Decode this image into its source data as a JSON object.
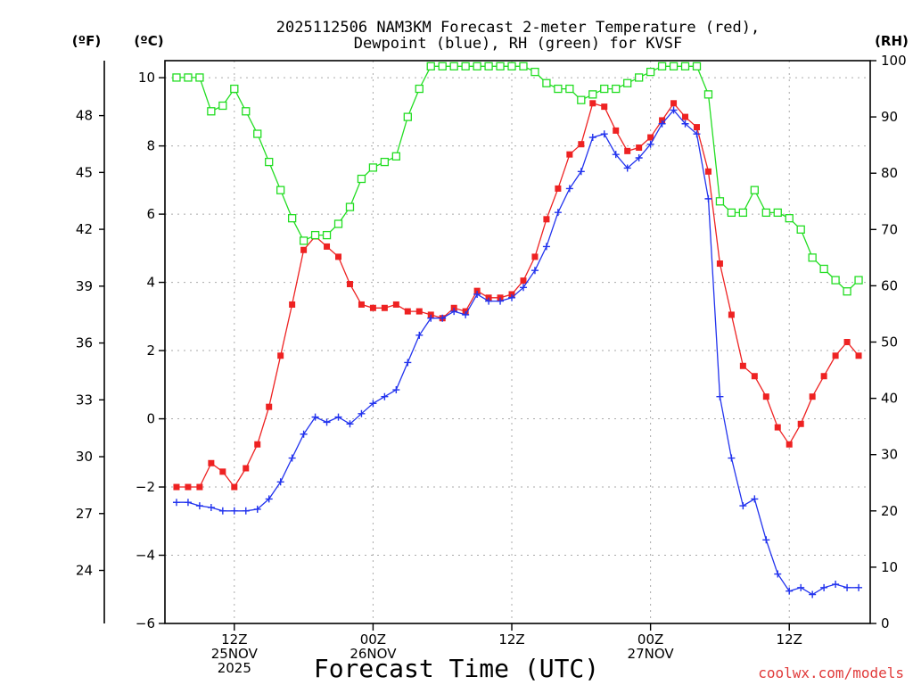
{
  "chart_data": {
    "type": "line",
    "title_lines": [
      "2025112506 NAM3KM Forecast 2-meter Temperature (red),",
      "Dewpoint (blue), RH (green) for KVSF"
    ],
    "xlabel": "Forecast Time (UTC)",
    "credit": "coolwx.com/models",
    "x_range": [
      0,
      61
    ],
    "x_ticks": [
      {
        "x": 6,
        "lines": [
          "12Z",
          "25NOV",
          "2025"
        ]
      },
      {
        "x": 18,
        "lines": [
          "00Z",
          "26NOV"
        ]
      },
      {
        "x": 30,
        "lines": [
          "12Z"
        ]
      },
      {
        "x": 42,
        "lines": [
          "00Z",
          "27NOV"
        ]
      },
      {
        "x": 54,
        "lines": [
          "12Z"
        ]
      }
    ],
    "axes": {
      "celsius": {
        "label": "(ºC)",
        "range": [
          -6,
          10.5
        ],
        "ticks": [
          "-6",
          "-4",
          "-2",
          "0",
          "2",
          "4",
          "6",
          "8",
          "10"
        ]
      },
      "fahrenheit": {
        "label": "(ºF)",
        "ticks": [
          "24",
          "27",
          "30",
          "33",
          "36",
          "39",
          "42",
          "45",
          "48"
        ]
      },
      "rh": {
        "label": "(RH)",
        "range": [
          0,
          100
        ],
        "ticks": [
          "0",
          "10",
          "20",
          "30",
          "40",
          "50",
          "60",
          "70",
          "80",
          "90",
          "100"
        ]
      }
    },
    "series": [
      {
        "name": "Temperature",
        "unit": "C",
        "color": "#ee2222",
        "marker": "filled-square",
        "values": [
          -2,
          -2,
          -2,
          -1.3,
          -1.55,
          -2,
          -1.45,
          -0.75,
          0.35,
          1.85,
          3.35,
          4.95,
          5.35,
          5.05,
          4.75,
          3.95,
          3.35,
          3.25,
          3.25,
          3.35,
          3.15,
          3.15,
          3.05,
          2.95,
          3.25,
          3.15,
          3.75,
          3.55,
          3.55,
          3.65,
          4.05,
          4.75,
          5.85,
          6.75,
          7.75,
          8.05,
          9.25,
          9.15,
          8.45,
          7.85,
          7.95,
          8.25,
          8.75,
          9.25,
          8.85,
          8.55,
          7.25,
          4.55,
          3.05,
          1.55,
          1.25,
          0.65,
          -0.25,
          -0.75,
          -0.15,
          0.65,
          1.25,
          1.85,
          2.25,
          1.85
        ]
      },
      {
        "name": "Dewpoint",
        "unit": "C",
        "color": "#2233ee",
        "marker": "plus",
        "values": [
          -2.45,
          -2.45,
          -2.55,
          -2.6,
          -2.7,
          -2.7,
          -2.7,
          -2.65,
          -2.35,
          -1.85,
          -1.15,
          -0.45,
          0.05,
          -0.1,
          0.05,
          -0.15,
          0.15,
          0.45,
          0.65,
          0.85,
          1.65,
          2.45,
          2.95,
          2.95,
          3.15,
          3.05,
          3.65,
          3.45,
          3.45,
          3.55,
          3.85,
          4.35,
          5.05,
          6.05,
          6.75,
          7.25,
          8.25,
          8.35,
          7.75,
          7.35,
          7.65,
          8.05,
          8.65,
          9.05,
          8.65,
          8.35,
          6.45,
          0.65,
          -1.15,
          -2.55,
          -2.35,
          -3.55,
          -4.55,
          -5.05,
          -4.95,
          -5.15,
          -4.95,
          -4.85,
          -4.95,
          -4.95
        ]
      },
      {
        "name": "RH",
        "unit": "%",
        "color": "#22dd22",
        "marker": "open-square",
        "values": [
          97,
          97,
          97,
          91,
          92,
          95,
          91,
          87,
          82,
          77,
          72,
          68,
          69,
          69,
          71,
          74,
          79,
          81,
          82,
          83,
          90,
          95,
          99,
          99,
          99,
          99,
          99,
          99,
          99,
          99,
          99,
          98,
          96,
          95,
          95,
          93,
          94,
          95,
          95,
          96,
          97,
          98,
          99,
          99,
          99,
          99,
          94,
          75,
          73,
          73,
          77,
          73,
          73,
          72,
          70,
          65,
          63,
          61,
          59,
          61
        ]
      }
    ]
  }
}
